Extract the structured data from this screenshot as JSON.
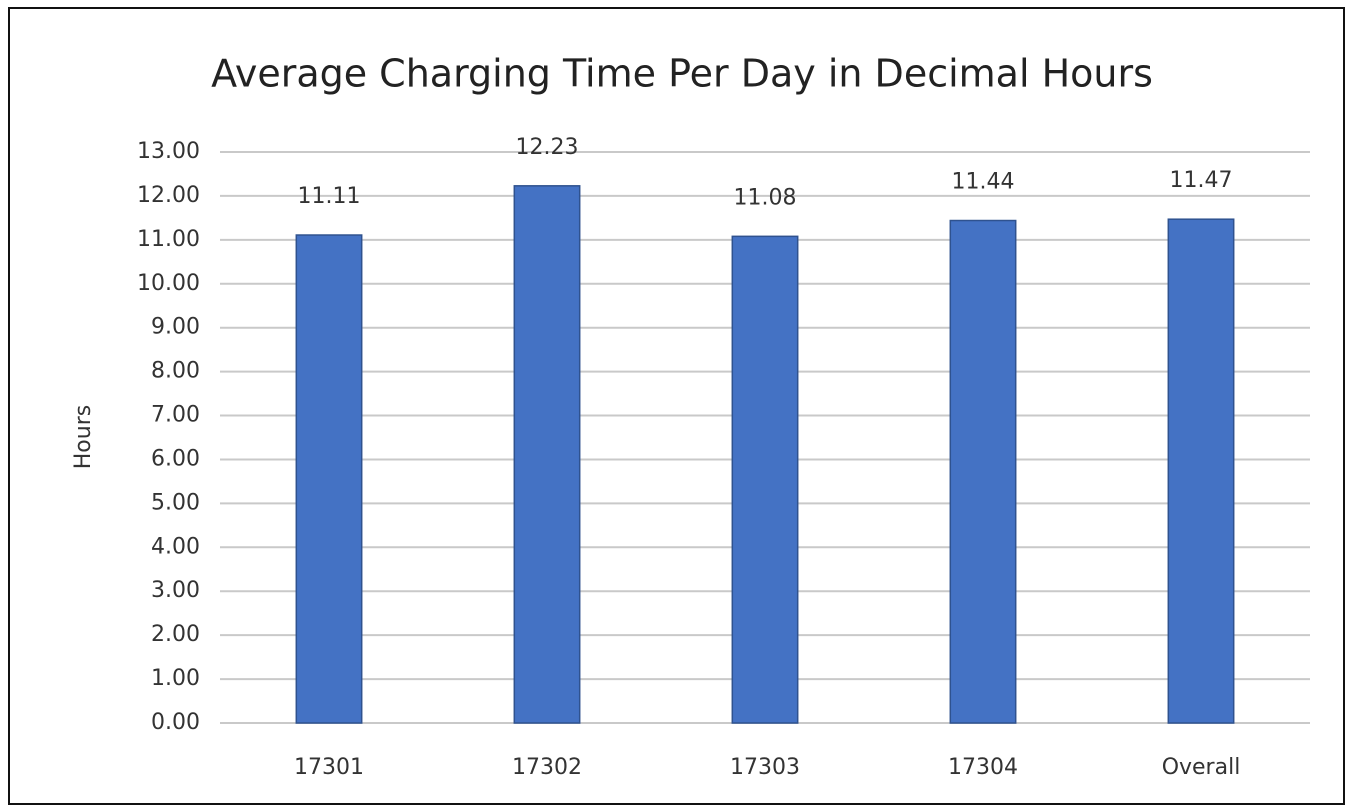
{
  "chart_data": {
    "type": "bar",
    "title": "Average Charging Time Per Day in Decimal Hours",
    "y_label": "Hours",
    "categories": [
      "17301",
      "17302",
      "17303",
      "17304",
      "Overall"
    ],
    "values": [
      11.11,
      12.23,
      11.08,
      11.44,
      11.47
    ],
    "color": "#4472c4",
    "ylim": [
      0,
      13
    ],
    "yticks": [
      {
        "value": 0,
        "label": "0.00"
      },
      {
        "value": 1,
        "label": "1.00"
      },
      {
        "value": 2,
        "label": "2.00"
      },
      {
        "value": 3,
        "label": "3.00"
      },
      {
        "value": 4,
        "label": "4.00"
      },
      {
        "value": 5,
        "label": "5.00"
      },
      {
        "value": 6,
        "label": "6.00"
      },
      {
        "value": 7,
        "label": "7.00"
      },
      {
        "value": 8,
        "label": "8.00"
      },
      {
        "value": 9,
        "label": "9.00"
      },
      {
        "value": 10,
        "label": "10.00"
      },
      {
        "value": 11,
        "label": "11.00"
      },
      {
        "value": 12,
        "label": "12.00"
      },
      {
        "value": 13,
        "label": "13.00"
      }
    ],
    "grid": true
  }
}
